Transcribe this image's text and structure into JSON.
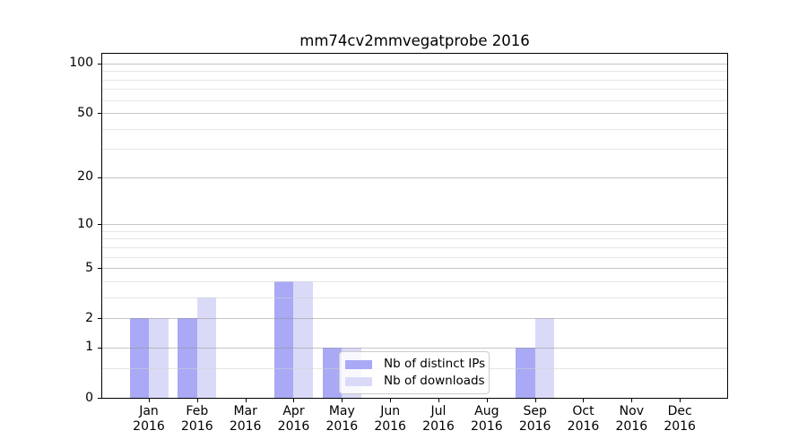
{
  "chart_data": {
    "type": "bar",
    "title": "mm74cv2mmvegatprobe 2016",
    "categories": [
      "Jan",
      "Feb",
      "Mar",
      "Apr",
      "May",
      "Jun",
      "Jul",
      "Aug",
      "Sep",
      "Oct",
      "Nov",
      "Dec"
    ],
    "category_year": "2016",
    "series": [
      {
        "name": "Nb of distinct IPs",
        "color": "#a9a9f6",
        "values": [
          2,
          2,
          0,
          4,
          1,
          0,
          0,
          0,
          1,
          0,
          0,
          0
        ]
      },
      {
        "name": "Nb of downloads",
        "color": "#dadaf8",
        "values": [
          2,
          3,
          0,
          4,
          1,
          0,
          0,
          0,
          2,
          0,
          0,
          0
        ]
      }
    ],
    "y_axis": {
      "scale": "log10(1+value)",
      "major_ticks": [
        0,
        1,
        2,
        5,
        10,
        20,
        50,
        100
      ],
      "minor_gridlines": [
        0.5,
        3,
        4,
        6,
        7,
        8,
        9,
        30,
        40,
        60,
        70,
        80,
        90
      ],
      "top_value": 113
    },
    "legend": {
      "position": "inside-lower-center",
      "entries": [
        "Nb of distinct IPs",
        "Nb of downloads"
      ]
    },
    "grid": true,
    "colors": {
      "major_grid": "#c8c8c8",
      "minor_grid": "#e8e8e8",
      "spine": "#000000",
      "background": "#ffffff"
    }
  }
}
